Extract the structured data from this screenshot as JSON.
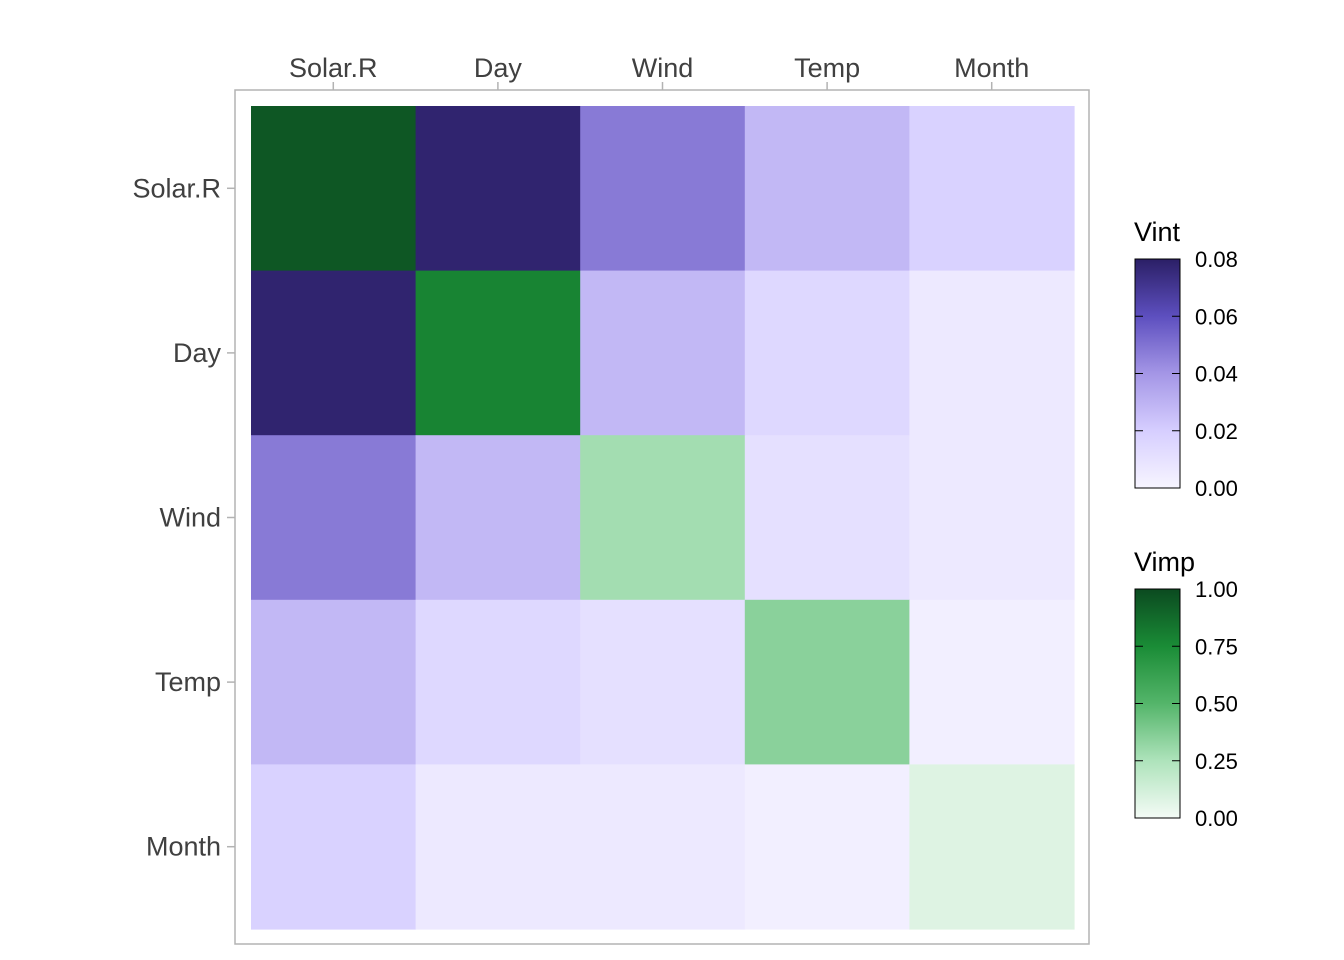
{
  "chart_data": {
    "type": "heatmap",
    "title": "",
    "xlabel": "",
    "ylabel": "",
    "x_axis_position": "top",
    "variables": [
      "Solar.R",
      "Day",
      "Wind",
      "Temp",
      "Month"
    ],
    "vimp": {
      "Solar.R": 0.95,
      "Day": 0.78,
      "Wind": 0.28,
      "Temp": 0.35,
      "Month": 0.08
    },
    "vint_matrix": [
      [
        null,
        0.078,
        0.048,
        0.028,
        0.018
      ],
      [
        0.078,
        null,
        0.028,
        0.015,
        0.006
      ],
      [
        0.048,
        0.028,
        null,
        0.011,
        0.006
      ],
      [
        0.028,
        0.015,
        0.011,
        null,
        0.003
      ],
      [
        0.018,
        0.006,
        0.006,
        0.003,
        null
      ]
    ],
    "legends": [
      {
        "name": "Vint",
        "title": "Vint",
        "range": [
          0.0,
          0.08
        ],
        "ticks": [
          0.0,
          0.02,
          0.04,
          0.06,
          0.08
        ],
        "tick_labels": [
          "0.00",
          "0.02",
          "0.04",
          "0.06",
          "0.08"
        ],
        "colors": [
          "#f7f5ff",
          "#d6ceff",
          "#a496e6",
          "#5d4fbf",
          "#2b1f66"
        ]
      },
      {
        "name": "Vimp",
        "title": "Vimp",
        "range": [
          0.0,
          1.0
        ],
        "ticks": [
          0.0,
          0.25,
          0.5,
          0.75,
          1.0
        ],
        "tick_labels": [
          "0.00",
          "0.25",
          "0.50",
          "0.75",
          "1.00"
        ],
        "colors": [
          "#f4fbf6",
          "#aee3bb",
          "#54b56a",
          "#1a8c36",
          "#0b4a20"
        ]
      }
    ],
    "legend_position": "right"
  }
}
